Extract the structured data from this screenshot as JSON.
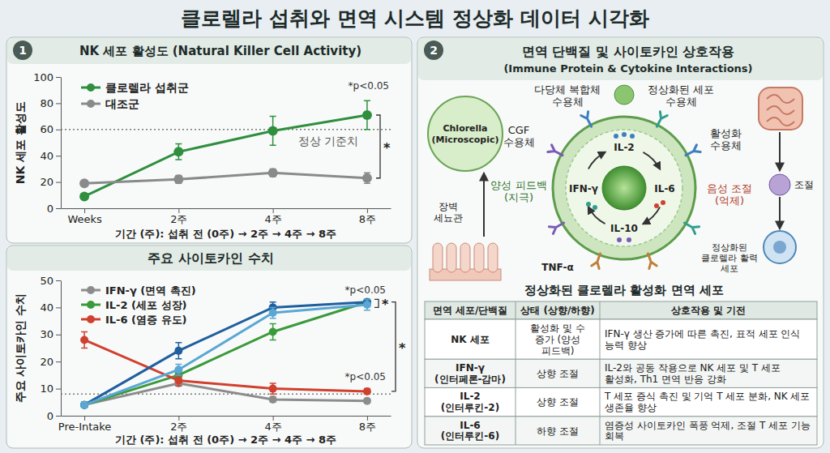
{
  "header": {
    "title": "클로렐라 섭취와 면역 시스템 정상화 데이터 시각화"
  },
  "chart_data": [
    {
      "type": "line",
      "panel": "1",
      "title": "NK 세포 활성도 (Natural Killer Cell Activity)",
      "x_label": "기간 (주): 섭취 전 (0주) → 2주 → 4주 → 8주",
      "y_label": "NK 세포 활성도",
      "categories": [
        "Weeks",
        "2주",
        "4주",
        "8주"
      ],
      "ylim": [
        0,
        100
      ],
      "yticks": [
        0,
        20,
        40,
        60,
        80,
        100
      ],
      "grid": false,
      "legend": "upper left",
      "marker": "circle",
      "line_style": "solid",
      "series": [
        {
          "name": "클로렐라 섭취군",
          "color": "#2f8f3e",
          "values": [
            9,
            43,
            59,
            71
          ],
          "errors": [
            1,
            6,
            11,
            11
          ]
        },
        {
          "name": "대조군",
          "color": "#8a8a8a",
          "values": [
            19,
            22,
            27,
            23
          ],
          "errors": [
            1,
            3,
            3,
            4
          ]
        }
      ],
      "reference_line": {
        "value": 60,
        "label": "정상 기준치"
      },
      "annotations": [
        "*p<0.05"
      ],
      "brackets": [
        {
          "low": 23,
          "high": 71,
          "label": "*"
        }
      ]
    },
    {
      "type": "line",
      "title": "주요 사이토카인 수치",
      "x_label": "기간 (주): 섭취 전 (0주) → 2주 → 4주 → 8주",
      "y_label": "주요 사이토카인 수치",
      "categories": [
        "Pre-Intake",
        "2주",
        "4주",
        "8주"
      ],
      "ylim": [
        0,
        50
      ],
      "yticks": [
        0,
        10,
        20,
        30,
        40,
        50
      ],
      "grid": false,
      "legend": "upper left",
      "marker": "circle",
      "line_style": "solid",
      "series": [
        {
          "name": "IFN-γ (면역 촉진)",
          "color": "#8c8c8c",
          "values": [
            4,
            12,
            6,
            5.5
          ],
          "errors": [
            1,
            1,
            1,
            0.5
          ]
        },
        {
          "name": "IL-2 (세포 성장)",
          "color": "#3b9a3b",
          "values": [
            4,
            15,
            31,
            42
          ],
          "errors": [
            1,
            1,
            3,
            1
          ]
        },
        {
          "name": "IL-6 (염증 유도)",
          "color": "#d0402f",
          "values": [
            28,
            13,
            10,
            9
          ],
          "errors": [
            3,
            2,
            2,
            1
          ]
        },
        {
          "color": "#1f5f9e",
          "values": [
            4,
            24,
            40,
            42
          ],
          "errors": [
            1,
            3,
            2,
            1
          ]
        },
        {
          "color": "#5aa6d4",
          "values": [
            4,
            17,
            38,
            41
          ],
          "errors": [
            1,
            2,
            2,
            2
          ]
        }
      ],
      "reference_line": {
        "value": 8
      },
      "annotations": [
        "*p<0.05",
        "*p<0.05"
      ],
      "brackets": [
        {
          "low": 40,
          "high": 43,
          "label": "*"
        },
        {
          "low": 9,
          "high": 42,
          "label": "*"
        }
      ]
    }
  ],
  "diagram": {
    "panel": "2",
    "title": "면역 단백질 및 사이토카인 상호작용",
    "subtitle": "(Immune Protein & Cytokine Interactions)",
    "labels": {
      "chlorella": "Chlorella (Microscopic)",
      "intestine": "장벽 세뇨관",
      "cgf_receptor": "CGF 수용체",
      "polysaccharide_receptor": "다당체 복합체 수용체",
      "normalized_receptor": "정상화된 세포 수용체",
      "activation_receptor": "활성화 수용체",
      "positive_feedback": "양성 피드백 (지극)",
      "negative_regulation": "음성 조절 (억제)",
      "regulation": "조절",
      "vital_cell": "정상화된 클로렐라 활력 세포"
    },
    "cytokines": {
      "top": "IL-2",
      "left": "IFN-γ",
      "right": "IL-6",
      "bottom": "IL-10",
      "outside": "TNF-α"
    },
    "caption": "정상화된 클로렐라 활성화 면역 세포"
  },
  "table": {
    "columns": [
      "면역 세포/단백질",
      "상태 (상향/하향)",
      "상호작용 및 기전"
    ],
    "rows": [
      [
        "NK 세포",
        "활성화 및 수 증가 (양성 피드백)",
        "IFN-γ 생산 증가에 따른 촉진, 표적 세포 인식 능력 향상"
      ],
      [
        "IFN-γ (인터페론-감마)",
        "상향 조절",
        "IL-2와 공동 작용으로 NK 세포 및 T 세포 활성화, Th1 면역 반응 강화"
      ],
      [
        "IL-2 (인터루킨-2)",
        "상향 조절",
        "T 세포 증식 촉진 및 기억 T 세포 분화, NK 세포 생존율 향상"
      ],
      [
        "IL-6 (인터루킨-6)",
        "하향 조절",
        "염증성 사이토카인 폭풍 억제, 조절 T 세포 기능 회복"
      ]
    ]
  }
}
